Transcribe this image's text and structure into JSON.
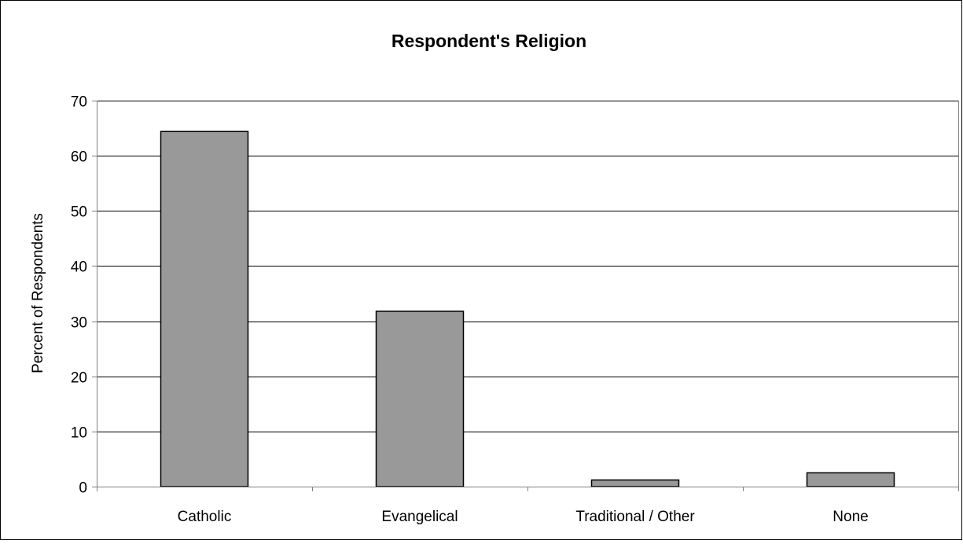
{
  "chart_data": {
    "type": "bar",
    "title": "Respondent's Religion",
    "xlabel": "",
    "ylabel": "Percent of Respondents",
    "categories": [
      "Catholic",
      "Evangelical",
      "Traditional / Other",
      "None"
    ],
    "values": [
      64.4,
      31.8,
      1.2,
      2.5
    ],
    "ylim": [
      0,
      70
    ],
    "yticks": [
      0,
      10,
      20,
      30,
      40,
      50,
      60,
      70
    ],
    "grid": true,
    "legend": "none",
    "colors": {
      "bar_fill": "#999999",
      "bar_stroke": "#000000",
      "gridline": "#000000",
      "axis": "#808080",
      "frame": "#000000",
      "background": "#ffffff"
    }
  }
}
